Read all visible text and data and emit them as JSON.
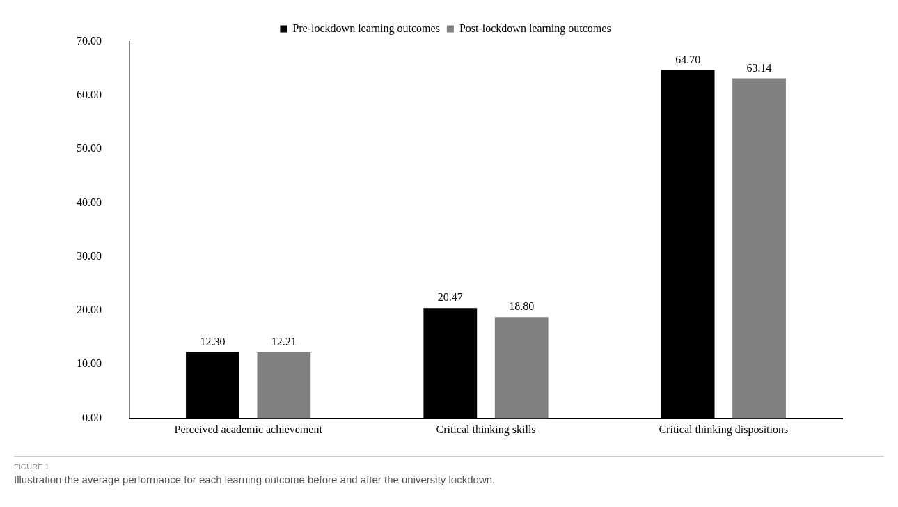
{
  "chart_data": {
    "type": "bar",
    "categories": [
      "Perceived academic achievement",
      "Critical thinking skills",
      "Critical thinking dispositions"
    ],
    "series": [
      {
        "name": "Pre-lockdown learning outcomes",
        "color": "#000000",
        "values": [
          12.3,
          20.47,
          64.7
        ],
        "value_labels": [
          "12.30",
          "20.47",
          "64.70"
        ]
      },
      {
        "name": "Post-lockdown learning outcomes",
        "color": "#808080",
        "values": [
          12.21,
          18.8,
          63.14
        ],
        "value_labels": [
          "12.21",
          "18.80",
          "63.14"
        ]
      }
    ],
    "ylim": [
      0,
      70
    ],
    "yticks": [
      {
        "value": 0,
        "label": "0.00"
      },
      {
        "value": 10,
        "label": "10.00"
      },
      {
        "value": 20,
        "label": "20.00"
      },
      {
        "value": 30,
        "label": "30.00"
      },
      {
        "value": 40,
        "label": "40.00"
      },
      {
        "value": 50,
        "label": "50.00"
      },
      {
        "value": 60,
        "label": "60.00"
      },
      {
        "value": 70,
        "label": "70.00"
      }
    ],
    "grid": false,
    "legend": "top",
    "annotations": [
      "FIGURE 1",
      "Illustration the average performance for each learning outcome before and after the university lockdown."
    ]
  }
}
